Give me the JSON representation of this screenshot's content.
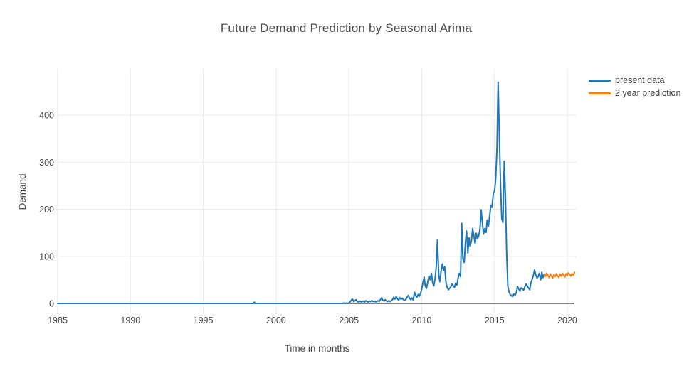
{
  "chart_data": {
    "type": "line",
    "title": "Future Demand Prediction by Seasonal Arima",
    "xlabel": "Time in months",
    "ylabel": "Demand",
    "xlim": [
      1985,
      2020.65
    ],
    "ylim": [
      -20,
      498
    ],
    "grid": true,
    "legend_position": "right-outside",
    "x_ticks": [
      1985,
      1990,
      1995,
      2000,
      2005,
      2010,
      2015,
      2020
    ],
    "y_ticks": [
      0,
      100,
      200,
      300,
      400
    ],
    "series": [
      {
        "name": "present data",
        "color": "#1f77b4",
        "points": [
          [
            1985.0,
            0
          ],
          [
            1998.42,
            0
          ],
          [
            1998.5,
            2.5
          ],
          [
            1998.58,
            0
          ],
          [
            2004.5,
            0
          ],
          [
            2004.58,
            0
          ],
          [
            2004.67,
            1
          ],
          [
            2004.75,
            0
          ],
          [
            2004.83,
            1
          ],
          [
            2004.92,
            0
          ],
          [
            2005.0,
            1
          ],
          [
            2005.08,
            3
          ],
          [
            2005.17,
            7
          ],
          [
            2005.25,
            9
          ],
          [
            2005.33,
            4
          ],
          [
            2005.42,
            6
          ],
          [
            2005.5,
            8
          ],
          [
            2005.58,
            4
          ],
          [
            2005.67,
            3
          ],
          [
            2005.75,
            5
          ],
          [
            2005.83,
            3
          ],
          [
            2005.92,
            4
          ],
          [
            2006.0,
            5
          ],
          [
            2006.08,
            3
          ],
          [
            2006.17,
            6
          ],
          [
            2006.25,
            4
          ],
          [
            2006.33,
            3
          ],
          [
            2006.42,
            5
          ],
          [
            2006.5,
            4
          ],
          [
            2006.58,
            6
          ],
          [
            2006.67,
            4
          ],
          [
            2006.75,
            5
          ],
          [
            2006.83,
            3
          ],
          [
            2006.92,
            4
          ],
          [
            2007.0,
            6
          ],
          [
            2007.08,
            4
          ],
          [
            2007.17,
            8
          ],
          [
            2007.25,
            12
          ],
          [
            2007.33,
            7
          ],
          [
            2007.42,
            5
          ],
          [
            2007.5,
            8
          ],
          [
            2007.58,
            5
          ],
          [
            2007.67,
            4
          ],
          [
            2007.75,
            6
          ],
          [
            2007.83,
            4
          ],
          [
            2007.92,
            6
          ],
          [
            2008.0,
            8
          ],
          [
            2008.08,
            13
          ],
          [
            2008.17,
            9
          ],
          [
            2008.25,
            15
          ],
          [
            2008.33,
            10
          ],
          [
            2008.42,
            7
          ],
          [
            2008.5,
            12
          ],
          [
            2008.58,
            9
          ],
          [
            2008.67,
            11
          ],
          [
            2008.75,
            8
          ],
          [
            2008.83,
            6
          ],
          [
            2008.92,
            9
          ],
          [
            2009.0,
            13
          ],
          [
            2009.08,
            17
          ],
          [
            2009.17,
            11
          ],
          [
            2009.25,
            8
          ],
          [
            2009.33,
            12
          ],
          [
            2009.42,
            7
          ],
          [
            2009.5,
            24
          ],
          [
            2009.58,
            17
          ],
          [
            2009.67,
            13
          ],
          [
            2009.75,
            19
          ],
          [
            2009.83,
            15
          ],
          [
            2009.92,
            21
          ],
          [
            2010.0,
            30
          ],
          [
            2010.08,
            44
          ],
          [
            2010.17,
            56
          ],
          [
            2010.25,
            37
          ],
          [
            2010.33,
            32
          ],
          [
            2010.42,
            46
          ],
          [
            2010.5,
            58
          ],
          [
            2010.58,
            50
          ],
          [
            2010.67,
            64
          ],
          [
            2010.75,
            44
          ],
          [
            2010.83,
            37
          ],
          [
            2010.92,
            52
          ],
          [
            2011.0,
            78
          ],
          [
            2011.08,
            135
          ],
          [
            2011.17,
            60
          ],
          [
            2011.25,
            46
          ],
          [
            2011.33,
            68
          ],
          [
            2011.42,
            84
          ],
          [
            2011.5,
            70
          ],
          [
            2011.58,
            78
          ],
          [
            2011.67,
            44
          ],
          [
            2011.75,
            34
          ],
          [
            2011.83,
            29
          ],
          [
            2011.92,
            32
          ],
          [
            2012.0,
            35
          ],
          [
            2012.08,
            41
          ],
          [
            2012.17,
            37
          ],
          [
            2012.25,
            34
          ],
          [
            2012.33,
            43
          ],
          [
            2012.42,
            39
          ],
          [
            2012.5,
            54
          ],
          [
            2012.58,
            64
          ],
          [
            2012.67,
            57
          ],
          [
            2012.75,
            170
          ],
          [
            2012.83,
            95
          ],
          [
            2012.92,
            87
          ],
          [
            2013.0,
            128
          ],
          [
            2013.08,
            154
          ],
          [
            2013.17,
            107
          ],
          [
            2013.25,
            139
          ],
          [
            2013.33,
            121
          ],
          [
            2013.42,
            134
          ],
          [
            2013.5,
            159
          ],
          [
            2013.58,
            144
          ],
          [
            2013.67,
            127
          ],
          [
            2013.75,
            149
          ],
          [
            2013.83,
            137
          ],
          [
            2013.92,
            144
          ],
          [
            2014.0,
            157
          ],
          [
            2014.08,
            199
          ],
          [
            2014.17,
            171
          ],
          [
            2014.25,
            147
          ],
          [
            2014.33,
            159
          ],
          [
            2014.42,
            151
          ],
          [
            2014.5,
            177
          ],
          [
            2014.58,
            164
          ],
          [
            2014.67,
            187
          ],
          [
            2014.75,
            209
          ],
          [
            2014.83,
            204
          ],
          [
            2014.92,
            234
          ],
          [
            2015.0,
            238
          ],
          [
            2015.08,
            262
          ],
          [
            2015.17,
            330
          ],
          [
            2015.25,
            470
          ],
          [
            2015.33,
            355
          ],
          [
            2015.42,
            248
          ],
          [
            2015.5,
            180
          ],
          [
            2015.58,
            172
          ],
          [
            2015.67,
            302
          ],
          [
            2015.75,
            225
          ],
          [
            2015.83,
            112
          ],
          [
            2015.92,
            36
          ],
          [
            2016.0,
            24
          ],
          [
            2016.08,
            19
          ],
          [
            2016.17,
            16
          ],
          [
            2016.25,
            15
          ],
          [
            2016.33,
            20
          ],
          [
            2016.42,
            18
          ],
          [
            2016.5,
            23
          ],
          [
            2016.58,
            36
          ],
          [
            2016.67,
            30
          ],
          [
            2016.75,
            26
          ],
          [
            2016.83,
            33
          ],
          [
            2016.92,
            31
          ],
          [
            2017.0,
            28
          ],
          [
            2017.08,
            35
          ],
          [
            2017.17,
            41
          ],
          [
            2017.25,
            37
          ],
          [
            2017.33,
            33
          ],
          [
            2017.42,
            29
          ],
          [
            2017.5,
            44
          ],
          [
            2017.58,
            51
          ],
          [
            2017.67,
            59
          ],
          [
            2017.75,
            71
          ],
          [
            2017.83,
            61
          ],
          [
            2017.92,
            54
          ],
          [
            2018.0,
            57
          ],
          [
            2018.08,
            64
          ],
          [
            2018.17,
            50
          ],
          [
            2018.25,
            66
          ],
          [
            2018.33,
            55
          ],
          [
            2018.42,
            62
          ]
        ]
      },
      {
        "name": "2 year prediction",
        "color": "#ff7f0e",
        "points": [
          [
            2018.42,
            62
          ],
          [
            2018.5,
            57
          ],
          [
            2018.58,
            64
          ],
          [
            2018.67,
            60
          ],
          [
            2018.75,
            55
          ],
          [
            2018.83,
            62
          ],
          [
            2018.92,
            58
          ],
          [
            2019.0,
            54
          ],
          [
            2019.08,
            61
          ],
          [
            2019.17,
            57
          ],
          [
            2019.25,
            63
          ],
          [
            2019.33,
            59
          ],
          [
            2019.42,
            55
          ],
          [
            2019.5,
            62
          ],
          [
            2019.58,
            58
          ],
          [
            2019.67,
            64
          ],
          [
            2019.75,
            60
          ],
          [
            2019.83,
            56
          ],
          [
            2019.92,
            63
          ],
          [
            2020.0,
            59
          ],
          [
            2020.08,
            65
          ],
          [
            2020.17,
            61
          ],
          [
            2020.25,
            58
          ],
          [
            2020.33,
            63
          ],
          [
            2020.42,
            60
          ],
          [
            2020.5,
            66
          ]
        ]
      }
    ]
  },
  "colors": {
    "grid": "#e9e9e9",
    "zero_line": "#555555",
    "tick_label": "#444444",
    "title": "#4c4c4c",
    "legend_text": "#3a3a3a",
    "background": "#ffffff"
  }
}
